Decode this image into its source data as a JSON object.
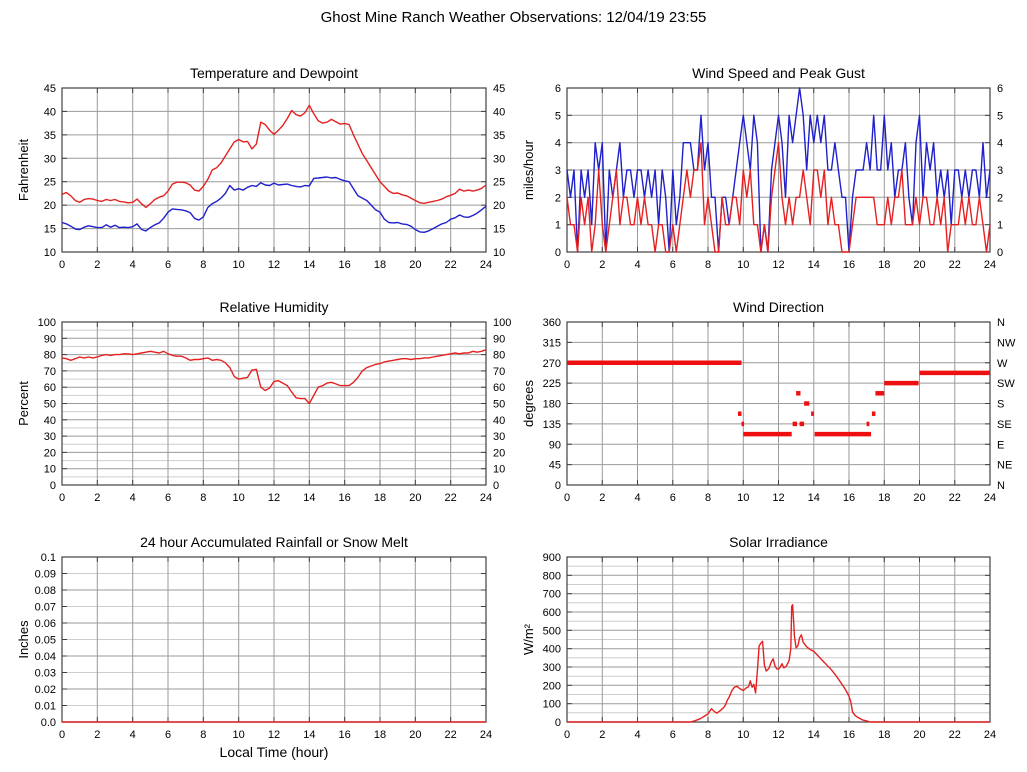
{
  "page": {
    "title": "Ghost Mine Ranch Weather Observations: 12/04/19 23:55",
    "background": "#ffffff"
  },
  "colors": {
    "red_series": "#e62020",
    "blue_series": "#2020cc",
    "grid_major": "#9a9a9a",
    "grid_minor": "#cdcdcd",
    "frame": "#404040",
    "text": "#000000"
  },
  "chart_data": [
    {
      "id": "temperature-dewpoint",
      "type": "line",
      "title": "Temperature and Dewpoint",
      "ylabel": "Fahrenheit",
      "xlim": [
        0,
        24
      ],
      "ylim": [
        10,
        45
      ],
      "xticks": [
        0,
        2,
        4,
        6,
        8,
        10,
        12,
        14,
        16,
        18,
        20,
        22,
        24
      ],
      "yticks": [
        10,
        15,
        20,
        25,
        30,
        35,
        40,
        45
      ],
      "ytick_labels": [
        "10",
        "15",
        "20",
        "25",
        "30",
        "35",
        "40",
        "45"
      ],
      "right_labels": [
        "10",
        "15",
        "20",
        "25",
        "30",
        "35",
        "40",
        "45"
      ],
      "ygrid": {
        "step": 5,
        "major_step": null
      },
      "series": [
        {
          "name": "dewpoint",
          "color": "#2020cc",
          "x_start": 0,
          "x_step": 0.25,
          "y": [
            16.3,
            16.0,
            15.5,
            14.9,
            14.8,
            15.3,
            15.6,
            15.4,
            15.2,
            15.2,
            15.8,
            15.3,
            15.7,
            15.2,
            15.3,
            15.2,
            15.4,
            16.0,
            14.8,
            14.5,
            15.2,
            15.8,
            16.2,
            17.2,
            18.5,
            19.2,
            19.1,
            19.0,
            18.8,
            18.4,
            17.2,
            16.8,
            17.5,
            19.5,
            20.3,
            20.8,
            21.5,
            22.5,
            24.2,
            23.2,
            23.5,
            23.2,
            23.8,
            24.2,
            24.0,
            24.8,
            24.3,
            24.2,
            24.7,
            24.3,
            24.4,
            24.5,
            24.2,
            24.0,
            23.9,
            24.2,
            24.1,
            25.7,
            25.8,
            25.9,
            26.0,
            25.8,
            25.9,
            25.5,
            25.2,
            25.0,
            23.5,
            22.0,
            21.5,
            21.0,
            20.0,
            19.0,
            18.5,
            17.0,
            16.3,
            16.2,
            16.3,
            16.0,
            15.9,
            15.5,
            14.8,
            14.3,
            14.2,
            14.5,
            15.0,
            15.5,
            16.0,
            16.3,
            17.0,
            17.3,
            17.9,
            17.5,
            17.4,
            17.8,
            18.3,
            19.0,
            19.8
          ]
        },
        {
          "name": "temperature",
          "color": "#e62020",
          "x_start": 0,
          "x_step": 0.25,
          "y": [
            22.3,
            22.7,
            22.0,
            21.0,
            20.6,
            21.2,
            21.4,
            21.3,
            21.0,
            20.8,
            21.2,
            21.0,
            21.2,
            20.8,
            20.7,
            20.5,
            20.6,
            21.3,
            20.3,
            19.5,
            20.3,
            21.2,
            21.7,
            22.0,
            23.0,
            24.5,
            24.9,
            24.9,
            24.8,
            24.3,
            23.2,
            23.0,
            24.0,
            25.5,
            27.5,
            28.0,
            29.0,
            30.5,
            32.0,
            33.5,
            34.0,
            33.5,
            33.6,
            32.0,
            33.0,
            37.7,
            37.2,
            36.0,
            35.1,
            36.0,
            37.0,
            38.5,
            40.2,
            39.3,
            39.0,
            39.7,
            41.3,
            39.5,
            38.0,
            37.5,
            37.7,
            38.3,
            37.8,
            37.3,
            37.4,
            37.2,
            35.0,
            33.0,
            31.0,
            29.5,
            28.0,
            26.5,
            25.0,
            24.0,
            23.0,
            22.5,
            22.6,
            22.2,
            22.0,
            21.5,
            21.0,
            20.5,
            20.4,
            20.6,
            20.8,
            21.0,
            21.3,
            21.8,
            22.1,
            22.5,
            23.4,
            23.0,
            23.2,
            23.0,
            23.2,
            23.6,
            24.3
          ]
        }
      ]
    },
    {
      "id": "wind-speed-gust",
      "type": "line",
      "title": "Wind Speed and Peak Gust",
      "ylabel": "miles/hour",
      "xlim": [
        0,
        24
      ],
      "ylim": [
        0,
        6
      ],
      "xticks": [
        0,
        2,
        4,
        6,
        8,
        10,
        12,
        14,
        16,
        18,
        20,
        22,
        24
      ],
      "yticks": [
        0,
        1,
        2,
        3,
        4,
        5,
        6
      ],
      "ytick_labels": [
        "0",
        "1",
        "2",
        "3",
        "4",
        "5",
        "6"
      ],
      "right_labels": [
        "0",
        "1",
        "2",
        "3",
        "4",
        "5",
        "6"
      ],
      "ygrid": {
        "step": 1,
        "major_step": null
      },
      "series": [
        {
          "name": "peak-gust",
          "color": "#2020cc",
          "x_start": 0,
          "x_step": 0.2,
          "y": [
            3,
            2,
            3,
            0,
            3,
            2,
            3,
            1,
            4,
            3,
            4,
            0,
            3,
            2,
            3,
            4,
            2,
            3,
            3,
            2,
            3,
            3,
            2,
            3,
            2,
            3,
            1,
            3,
            2,
            0,
            3,
            1,
            2,
            4,
            4,
            4,
            3,
            3,
            5,
            3,
            4,
            2,
            2,
            0,
            2,
            2,
            1,
            2,
            3,
            4,
            5,
            4,
            3,
            5,
            4,
            0,
            1,
            0,
            3,
            4,
            5,
            4,
            2,
            5,
            4,
            5,
            6,
            5,
            3,
            5,
            4,
            5,
            4,
            5,
            3,
            3,
            4,
            3,
            2,
            2,
            0,
            2,
            3,
            3,
            3,
            4,
            3,
            5,
            3,
            3,
            5,
            3,
            4,
            2,
            3,
            3,
            4,
            2,
            1,
            4,
            5,
            2,
            4,
            3,
            4,
            2,
            3,
            2,
            3,
            1,
            3,
            3,
            2,
            3,
            2,
            3,
            3,
            2,
            4,
            2,
            3
          ]
        },
        {
          "name": "wind-speed",
          "color": "#e62020",
          "x_start": 0,
          "x_step": 0.2,
          "y": [
            2,
            1,
            1,
            0,
            2,
            1,
            2,
            0,
            1,
            3,
            1,
            0,
            1,
            2,
            3,
            1,
            2,
            2,
            1,
            1,
            2,
            1,
            2,
            1,
            1,
            0,
            1,
            1,
            0,
            0,
            1,
            0,
            1,
            2,
            3,
            2,
            3,
            3,
            4,
            1,
            2,
            1,
            0,
            0,
            2,
            1,
            1,
            2,
            2,
            1,
            3,
            2,
            3,
            1,
            1,
            0,
            1,
            0,
            2,
            3,
            4,
            2,
            1,
            2,
            1,
            2,
            2,
            3,
            2,
            1,
            3,
            3,
            2,
            3,
            1,
            2,
            1,
            1,
            0,
            0,
            0,
            1,
            2,
            2,
            2,
            2,
            2,
            2,
            1,
            1,
            1,
            2,
            1,
            2,
            2,
            3,
            1,
            1,
            1,
            2,
            1,
            2,
            2,
            1,
            1,
            2,
            1,
            2,
            0,
            1,
            1,
            1,
            2,
            1,
            2,
            1,
            1,
            2,
            1,
            0,
            1
          ]
        }
      ]
    },
    {
      "id": "relative-humidity",
      "type": "line",
      "title": "Relative Humidity",
      "ylabel": "Percent",
      "xlim": [
        0,
        24
      ],
      "ylim": [
        0,
        100
      ],
      "xticks": [
        0,
        2,
        4,
        6,
        8,
        10,
        12,
        14,
        16,
        18,
        20,
        22,
        24
      ],
      "yticks": [
        0,
        10,
        20,
        30,
        40,
        50,
        60,
        70,
        80,
        90,
        100
      ],
      "ytick_labels": [
        "0",
        "10",
        "20",
        "30",
        "40",
        "50",
        "60",
        "70",
        "80",
        "90",
        "100"
      ],
      "right_labels": [
        "0",
        "10",
        "20",
        "30",
        "40",
        "50",
        "60",
        "70",
        "80",
        "90",
        "100"
      ],
      "ygrid": {
        "step": 5,
        "major_step": 10
      },
      "series": [
        {
          "name": "relative-humidity",
          "color": "#e62020",
          "x_start": 0,
          "x_step": 0.25,
          "y": [
            78,
            77.5,
            76.5,
            77.5,
            78.5,
            78,
            78.5,
            78,
            78.5,
            79.5,
            80,
            79.5,
            80,
            80,
            80.5,
            80.5,
            80,
            80.5,
            81,
            81.5,
            82,
            81.5,
            81,
            82,
            80.5,
            79.5,
            79,
            79,
            78,
            76.5,
            77,
            77,
            77.5,
            78,
            76.5,
            77,
            76.5,
            75,
            72,
            66.5,
            65,
            65.5,
            66,
            70.5,
            71,
            60,
            58,
            59.5,
            63.5,
            64,
            62.5,
            61,
            57,
            53.5,
            53,
            53,
            50,
            55,
            60,
            61,
            62.5,
            63,
            62,
            61,
            61,
            61,
            63,
            66,
            70,
            72,
            73,
            74,
            74.5,
            75.5,
            76,
            76.5,
            77,
            77.5,
            77.5,
            77,
            77.5,
            77.5,
            78,
            78,
            78.5,
            79,
            79.5,
            80,
            80.5,
            81,
            80.5,
            81,
            81,
            82,
            81.5,
            82,
            83
          ]
        }
      ]
    },
    {
      "id": "wind-direction",
      "type": "segments",
      "title": "Wind Direction",
      "ylabel": "degrees",
      "xlim": [
        0,
        24
      ],
      "ylim": [
        0,
        360
      ],
      "xticks": [
        0,
        2,
        4,
        6,
        8,
        10,
        12,
        14,
        16,
        18,
        20,
        22,
        24
      ],
      "yticks": [
        0,
        45,
        90,
        135,
        180,
        225,
        270,
        315,
        360
      ],
      "ytick_labels": [
        "0",
        "45",
        "90",
        "135",
        "180",
        "225",
        "270",
        "315",
        "360"
      ],
      "right_labels": [
        "N",
        "NE",
        "E",
        "SE",
        "S",
        "SW",
        "W",
        "NW",
        "N"
      ],
      "ygrid": {
        "step": 45,
        "major_step": null
      },
      "series": [
        {
          "name": "wind-direction",
          "color": "#ee1010",
          "segments": [
            [
              0.0,
              9.9,
              270
            ],
            [
              9.7,
              9.9,
              157.5
            ],
            [
              9.9,
              10.05,
              135
            ],
            [
              10.0,
              12.75,
              112.5
            ],
            [
              12.8,
              13.05,
              135
            ],
            [
              13.0,
              13.25,
              202.5
            ],
            [
              13.2,
              13.45,
              135
            ],
            [
              13.45,
              13.75,
              180
            ],
            [
              13.85,
              14.0,
              157.5
            ],
            [
              14.05,
              17.25,
              112.5
            ],
            [
              17.0,
              17.15,
              135
            ],
            [
              17.3,
              17.5,
              157.5
            ],
            [
              17.5,
              18.0,
              202.5
            ],
            [
              18.0,
              19.95,
              225
            ],
            [
              20.0,
              24.0,
              247.5
            ]
          ]
        }
      ]
    },
    {
      "id": "rainfall",
      "type": "line",
      "title": "24 hour Accumulated Rainfall or Snow Melt",
      "ylabel": "Inches",
      "xlabel": "Local Time (hour)",
      "xlim": [
        0,
        24
      ],
      "ylim": [
        0,
        0.1
      ],
      "xticks": [
        0,
        2,
        4,
        6,
        8,
        10,
        12,
        14,
        16,
        18,
        20,
        22,
        24
      ],
      "yticks": [
        0,
        0.01,
        0.02,
        0.03,
        0.04,
        0.05,
        0.06,
        0.07,
        0.08,
        0.09,
        0.1
      ],
      "ytick_labels": [
        "0.0",
        "0.01",
        "0.02",
        "0.03",
        "0.04",
        "0.05",
        "0.06",
        "0.07",
        "0.08",
        "0.09",
        "0.1"
      ],
      "right_labels": [],
      "ygrid": {
        "step": 0.01,
        "major_step": 0.02
      },
      "series": [
        {
          "name": "rainfall",
          "color": "#e62020",
          "x": [
            0,
            24
          ],
          "y": [
            0,
            0
          ]
        }
      ]
    },
    {
      "id": "solar-irradiance",
      "type": "line",
      "title": "Solar Irradiance",
      "ylabel": "W/m²",
      "xlim": [
        0,
        24
      ],
      "ylim": [
        0,
        900
      ],
      "xticks": [
        0,
        2,
        4,
        6,
        8,
        10,
        12,
        14,
        16,
        18,
        20,
        22,
        24
      ],
      "yticks": [
        0,
        100,
        200,
        300,
        400,
        500,
        600,
        700,
        800,
        900
      ],
      "ytick_labels": [
        "0",
        "100",
        "200",
        "300",
        "400",
        "500",
        "600",
        "700",
        "800",
        "900"
      ],
      "right_labels": [],
      "ygrid": {
        "step": 50,
        "major_step": 100
      },
      "series": [
        {
          "name": "solar-irradiance",
          "color": "#e62020",
          "x": [
            0,
            7.0,
            7.2,
            7.4,
            7.6,
            7.8,
            8.0,
            8.1,
            8.2,
            8.35,
            8.5,
            8.7,
            8.9,
            9.0,
            9.1,
            9.2,
            9.35,
            9.5,
            9.65,
            9.8,
            10.0,
            10.15,
            10.3,
            10.4,
            10.5,
            10.6,
            10.7,
            10.8,
            10.9,
            11.0,
            11.1,
            11.2,
            11.3,
            11.45,
            11.6,
            11.7,
            11.8,
            11.9,
            12.0,
            12.1,
            12.2,
            12.3,
            12.45,
            12.6,
            12.7,
            12.75,
            12.8,
            12.85,
            12.9,
            13.0,
            13.1,
            13.2,
            13.3,
            13.4,
            13.6,
            13.8,
            14.0,
            14.25,
            14.5,
            14.75,
            15.0,
            15.25,
            15.5,
            15.75,
            15.9,
            16.0,
            16.1,
            16.2,
            16.35,
            16.5,
            16.75,
            17.0,
            17.2,
            24.0
          ],
          "y": [
            0,
            0,
            5,
            12,
            20,
            32,
            45,
            60,
            72,
            58,
            48,
            62,
            80,
            95,
            120,
            135,
            170,
            190,
            195,
            182,
            172,
            185,
            192,
            225,
            190,
            205,
            158,
            280,
            415,
            430,
            440,
            310,
            278,
            292,
            330,
            345,
            305,
            290,
            288,
            300,
            318,
            295,
            305,
            335,
            400,
            630,
            640,
            560,
            470,
            405,
            415,
            460,
            475,
            435,
            410,
            395,
            385,
            360,
            335,
            310,
            285,
            255,
            220,
            185,
            160,
            140,
            110,
            55,
            35,
            25,
            12,
            6,
            0,
            0
          ]
        }
      ]
    }
  ]
}
